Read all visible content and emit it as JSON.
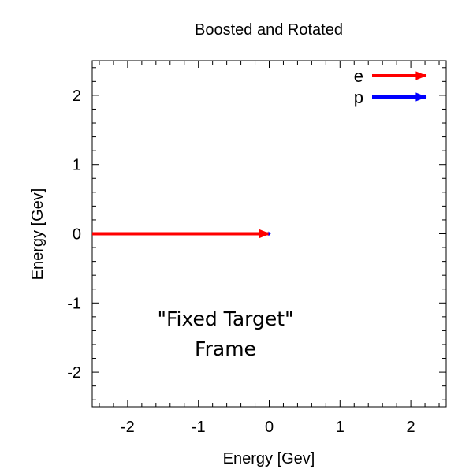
{
  "chart_data": {
    "type": "vector",
    "title": "Boosted and Rotated",
    "xlabel": "Energy [Gev]",
    "ylabel": "Energy [Gev]",
    "xlim": [
      -2.5,
      2.5
    ],
    "ylim": [
      -2.5,
      2.5
    ],
    "xticks": [
      -2,
      -1,
      0,
      1,
      2
    ],
    "yticks": [
      -2,
      -1,
      0,
      1,
      2
    ],
    "grid": false,
    "legend_position": "top-right",
    "annotation": [
      "\"Fixed Target\"",
      "Frame"
    ],
    "series": [
      {
        "name": "e",
        "color": "#ff0000",
        "vectors": [
          {
            "x0": -2.5,
            "y0": 0,
            "x1": 0,
            "y1": 0
          }
        ]
      },
      {
        "name": "p",
        "color": "#0000ff",
        "vectors": [
          {
            "x0": 0,
            "y0": 0,
            "x1": 0.001,
            "y1": 0
          }
        ]
      }
    ]
  }
}
